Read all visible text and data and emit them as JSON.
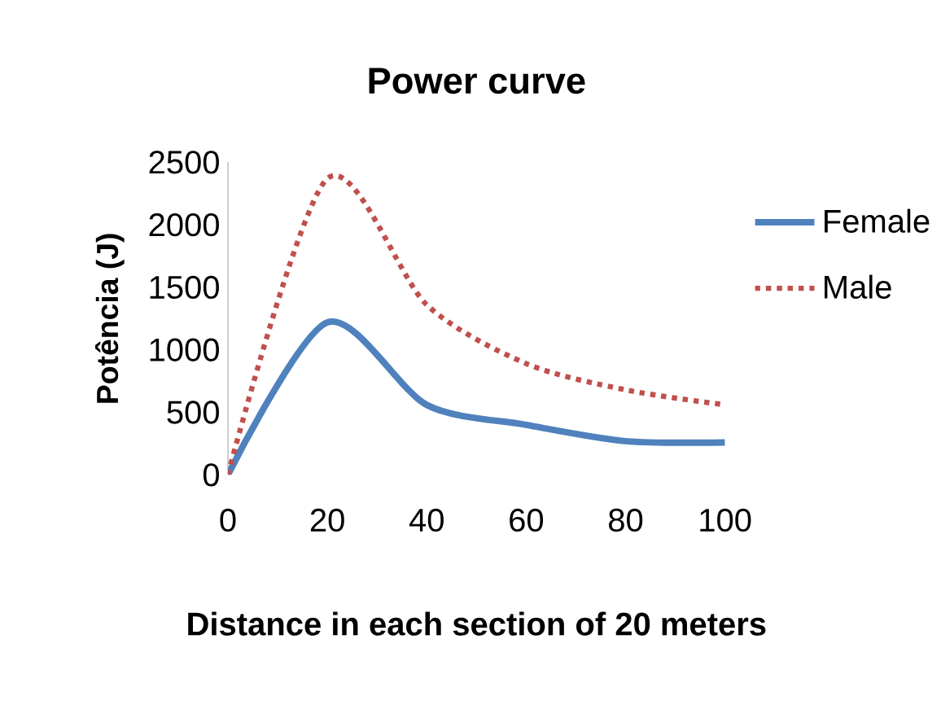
{
  "chart_data": {
    "type": "line",
    "title": "Power curve",
    "xlabel": "Distance in each section of 20 meters",
    "ylabel": "Potência (J)",
    "x": [
      0,
      20,
      40,
      60,
      80,
      100
    ],
    "series": [
      {
        "name": "Female",
        "color": "#4f81bd",
        "line_style": "solid",
        "values": [
          0,
          1220,
          560,
          400,
          270,
          260
        ]
      },
      {
        "name": "Male",
        "color": "#c0504d",
        "line_style": "dotted",
        "values": [
          0,
          2370,
          1360,
          890,
          680,
          560
        ]
      }
    ],
    "xlim": [
      0,
      100
    ],
    "xticks": [
      0,
      20,
      40,
      60,
      80,
      100
    ],
    "ylim": [
      0,
      2500
    ],
    "yticks": [
      0,
      500,
      1000,
      1500,
      2000,
      2500
    ],
    "grid": false,
    "legend": "right",
    "marker": "none"
  }
}
